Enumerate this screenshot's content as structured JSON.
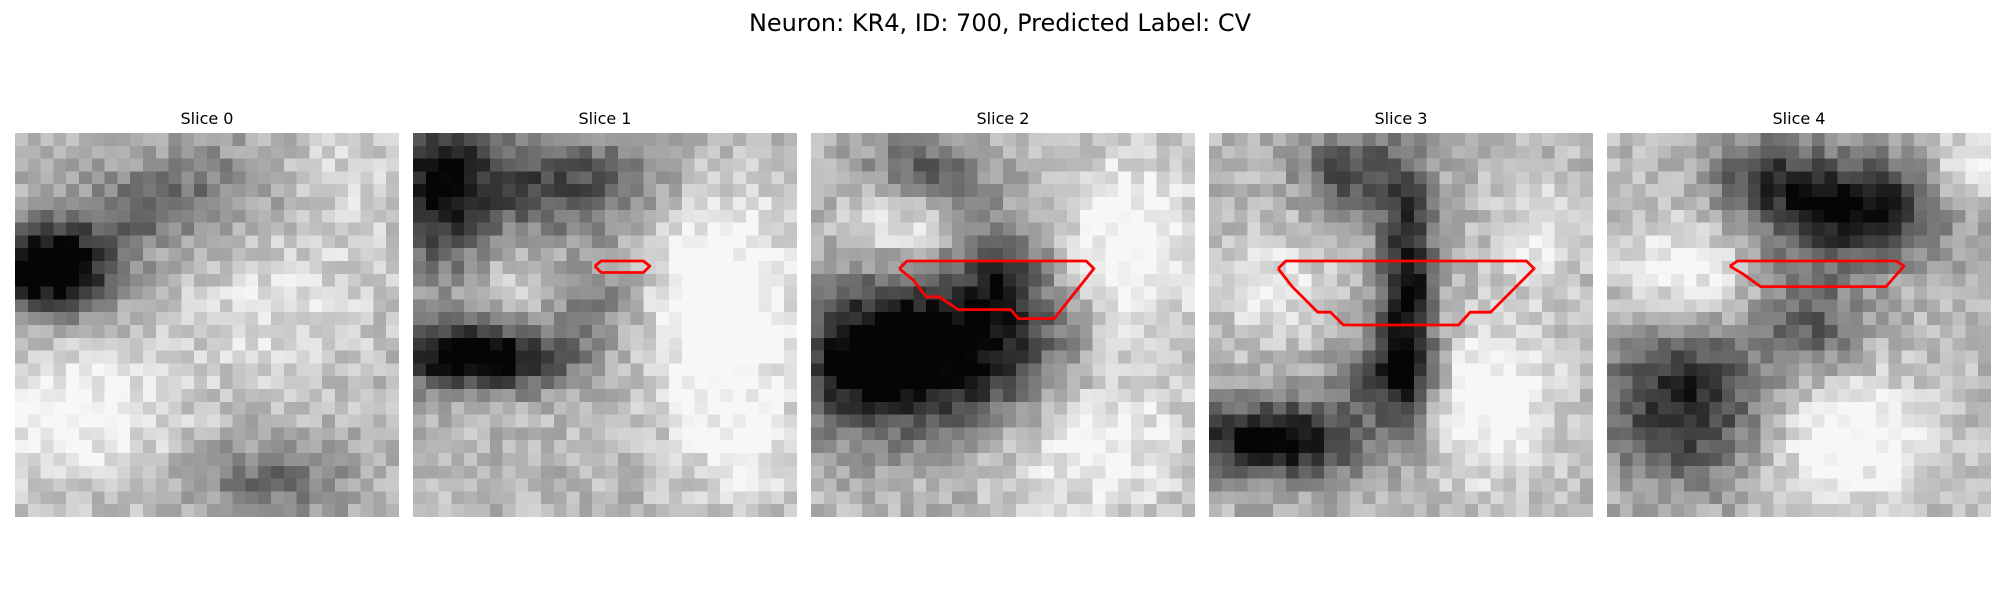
{
  "figure": {
    "title": "Neuron: KR4, ID: 700, Predicted Label: CV"
  },
  "colors": {
    "contour": "#ff0000",
    "background": "#ffffff"
  },
  "panels": [
    {
      "title": "Slice 0",
      "has_contour": false,
      "darks": [
        [
          2.5,
          10.5,
          5.5,
          3.5,
          0.9
        ],
        [
          10,
          6,
          5,
          3,
          0.25
        ],
        [
          20,
          27,
          6,
          3,
          0.3
        ],
        [
          16,
          4,
          6,
          4,
          0.2
        ]
      ],
      "lights": [
        [
          4,
          22,
          8,
          5,
          0.3
        ],
        [
          20,
          14,
          8,
          6,
          0.15
        ],
        [
          26,
          4,
          6,
          6,
          0.12
        ]
      ]
    },
    {
      "title": "Slice 1",
      "has_contour": true,
      "contour": [
        [
          14.2,
          10.4
        ],
        [
          14.7,
          10.0
        ],
        [
          18.0,
          10.0
        ],
        [
          18.5,
          10.4
        ],
        [
          18.0,
          10.9
        ],
        [
          14.7,
          10.9
        ],
        [
          14.2,
          10.4
        ]
      ],
      "darks": [
        [
          5,
          17.5,
          7,
          2.5,
          0.85
        ],
        [
          2,
          4,
          4,
          7,
          0.6
        ],
        [
          11,
          4,
          8,
          4,
          0.45
        ],
        [
          14,
          13,
          4,
          3,
          0.3
        ]
      ],
      "lights": [
        [
          24,
          14,
          6,
          9,
          0.4
        ],
        [
          9,
          12,
          4,
          3,
          0.15
        ],
        [
          26,
          25,
          4,
          4,
          0.2
        ]
      ]
    },
    {
      "title": "Slice 2",
      "has_contour": true,
      "contour": [
        [
          6.9,
          10.6
        ],
        [
          7.5,
          10.0
        ],
        [
          21.5,
          10.0
        ],
        [
          22.1,
          10.6
        ],
        [
          19.0,
          14.5
        ],
        [
          16.2,
          14.5
        ],
        [
          15.6,
          13.8
        ],
        [
          11.5,
          13.8
        ],
        [
          10.0,
          12.8
        ],
        [
          9.0,
          12.8
        ],
        [
          8.0,
          11.5
        ],
        [
          6.9,
          10.6
        ]
      ],
      "darks": [
        [
          11,
          17,
          9,
          6,
          0.75
        ],
        [
          15,
          11,
          3,
          4,
          0.4
        ],
        [
          4,
          18,
          5,
          5,
          0.5
        ],
        [
          9,
          3,
          5,
          3,
          0.35
        ]
      ],
      "lights": [
        [
          25,
          9,
          5,
          7,
          0.35
        ],
        [
          7,
          7,
          4,
          3,
          0.25
        ],
        [
          22,
          24,
          7,
          6,
          0.3
        ]
      ]
    },
    {
      "title": "Slice 3",
      "has_contour": true,
      "contour": [
        [
          5.4,
          10.6
        ],
        [
          6.0,
          10.0
        ],
        [
          24.8,
          10.0
        ],
        [
          25.4,
          10.6
        ],
        [
          22.0,
          14.0
        ],
        [
          20.4,
          14.0
        ],
        [
          19.5,
          15.0
        ],
        [
          10.5,
          15.0
        ],
        [
          9.5,
          14.0
        ],
        [
          8.5,
          14.0
        ],
        [
          6.5,
          12.0
        ],
        [
          5.4,
          10.6
        ]
      ],
      "darks": [
        [
          15.5,
          12,
          2.2,
          9,
          0.7
        ],
        [
          5,
          24,
          7,
          3,
          0.75
        ],
        [
          11,
          3,
          4,
          3,
          0.45
        ],
        [
          14,
          19,
          4,
          3,
          0.45
        ]
      ],
      "lights": [
        [
          5,
          12,
          4,
          4,
          0.2
        ],
        [
          22,
          21,
          5,
          6,
          0.35
        ],
        [
          26,
          8,
          3,
          4,
          0.25
        ]
      ]
    },
    {
      "title": "Slice 4",
      "has_contour": true,
      "contour": [
        [
          9.6,
          10.4
        ],
        [
          10.2,
          10.0
        ],
        [
          22.6,
          10.0
        ],
        [
          23.2,
          10.4
        ],
        [
          21.8,
          12.0
        ],
        [
          12.0,
          12.0
        ],
        [
          10.6,
          11.0
        ],
        [
          9.6,
          10.4
        ]
      ],
      "darks": [
        [
          19,
          6,
          7,
          4,
          0.75
        ],
        [
          6,
          21,
          6,
          6,
          0.6
        ],
        [
          12,
          3,
          4,
          3,
          0.35
        ],
        [
          16,
          15,
          4,
          4,
          0.35
        ]
      ],
      "lights": [
        [
          6,
          11,
          5,
          4,
          0.3
        ],
        [
          19,
          24,
          6,
          5,
          0.35
        ],
        [
          28,
          3,
          3,
          3,
          0.3
        ]
      ]
    }
  ]
}
